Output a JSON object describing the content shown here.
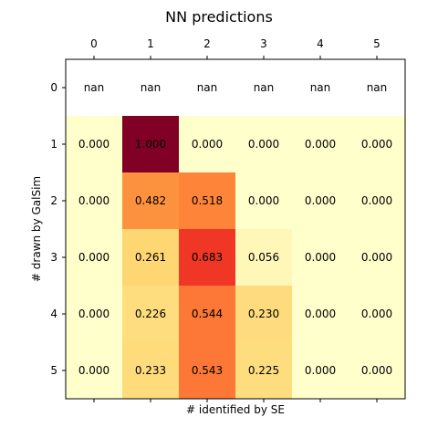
{
  "chart_data": {
    "type": "heatmap",
    "title": "NN predictions",
    "xlabel": "# identified by SE",
    "ylabel": "# drawn by GalSim",
    "x_categories": [
      "0",
      "1",
      "2",
      "3",
      "4",
      "5"
    ],
    "y_categories": [
      "0",
      "1",
      "2",
      "3",
      "4",
      "5"
    ],
    "x_tick_position": "top",
    "colormap": "YlOrRd",
    "value_range": [
      0,
      1
    ],
    "nan_label": "nan",
    "values": [
      [
        null,
        null,
        null,
        null,
        null,
        null
      ],
      [
        0.0,
        1.0,
        0.0,
        0.0,
        0.0,
        0.0
      ],
      [
        0.0,
        0.482,
        0.518,
        0.0,
        0.0,
        0.0
      ],
      [
        0.0,
        0.261,
        0.683,
        0.056,
        0.0,
        0.0
      ],
      [
        0.0,
        0.226,
        0.544,
        0.23,
        0.0,
        0.0
      ],
      [
        0.0,
        0.233,
        0.543,
        0.225,
        0.0,
        0.0
      ]
    ],
    "colors": {
      "nan": "#ffffff",
      "scale": [
        "#ffffcc",
        "#ffeda0",
        "#fed976",
        "#feb24c",
        "#fd8d3c",
        "#fc4e2a",
        "#e31a1c",
        "#bd0026",
        "#800026"
      ]
    }
  }
}
